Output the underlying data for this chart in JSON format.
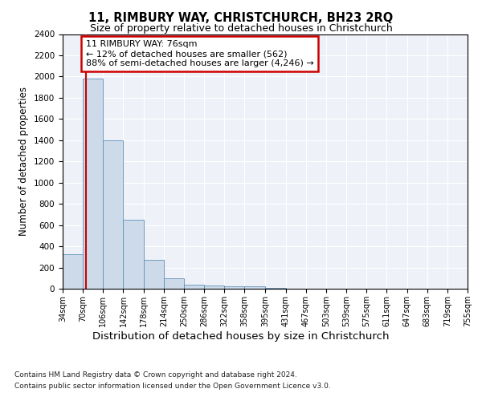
{
  "title1": "11, RIMBURY WAY, CHRISTCHURCH, BH23 2RQ",
  "title2": "Size of property relative to detached houses in Christchurch",
  "xlabel": "Distribution of detached houses by size in Christchurch",
  "ylabel": "Number of detached properties",
  "footnote1": "Contains HM Land Registry data © Crown copyright and database right 2024.",
  "footnote2": "Contains public sector information licensed under the Open Government Licence v3.0.",
  "annotation_line1": "11 RIMBURY WAY: 76sqm",
  "annotation_line2": "← 12% of detached houses are smaller (562)",
  "annotation_line3": "88% of semi-detached houses are larger (4,246) →",
  "property_size_sqm": 76,
  "bar_color": "#ccdaea",
  "bar_edge_color": "#6090b8",
  "vline_color": "#cc0000",
  "annotation_box_edgecolor": "#cc0000",
  "background_color": "#eef2f8",
  "grid_color": "#ffffff",
  "ylim": [
    0,
    2400
  ],
  "yticks": [
    0,
    200,
    400,
    600,
    800,
    1000,
    1200,
    1400,
    1600,
    1800,
    2000,
    2200,
    2400
  ],
  "bin_edges": [
    34,
    70,
    106,
    142,
    178,
    214,
    250,
    286,
    322,
    358,
    395,
    431,
    467,
    503,
    539,
    575,
    611,
    647,
    683,
    719,
    755
  ],
  "bar_heights": [
    325,
    1980,
    1400,
    650,
    270,
    100,
    40,
    30,
    25,
    20,
    5,
    0,
    0,
    0,
    0,
    0,
    0,
    0,
    0,
    0
  ]
}
